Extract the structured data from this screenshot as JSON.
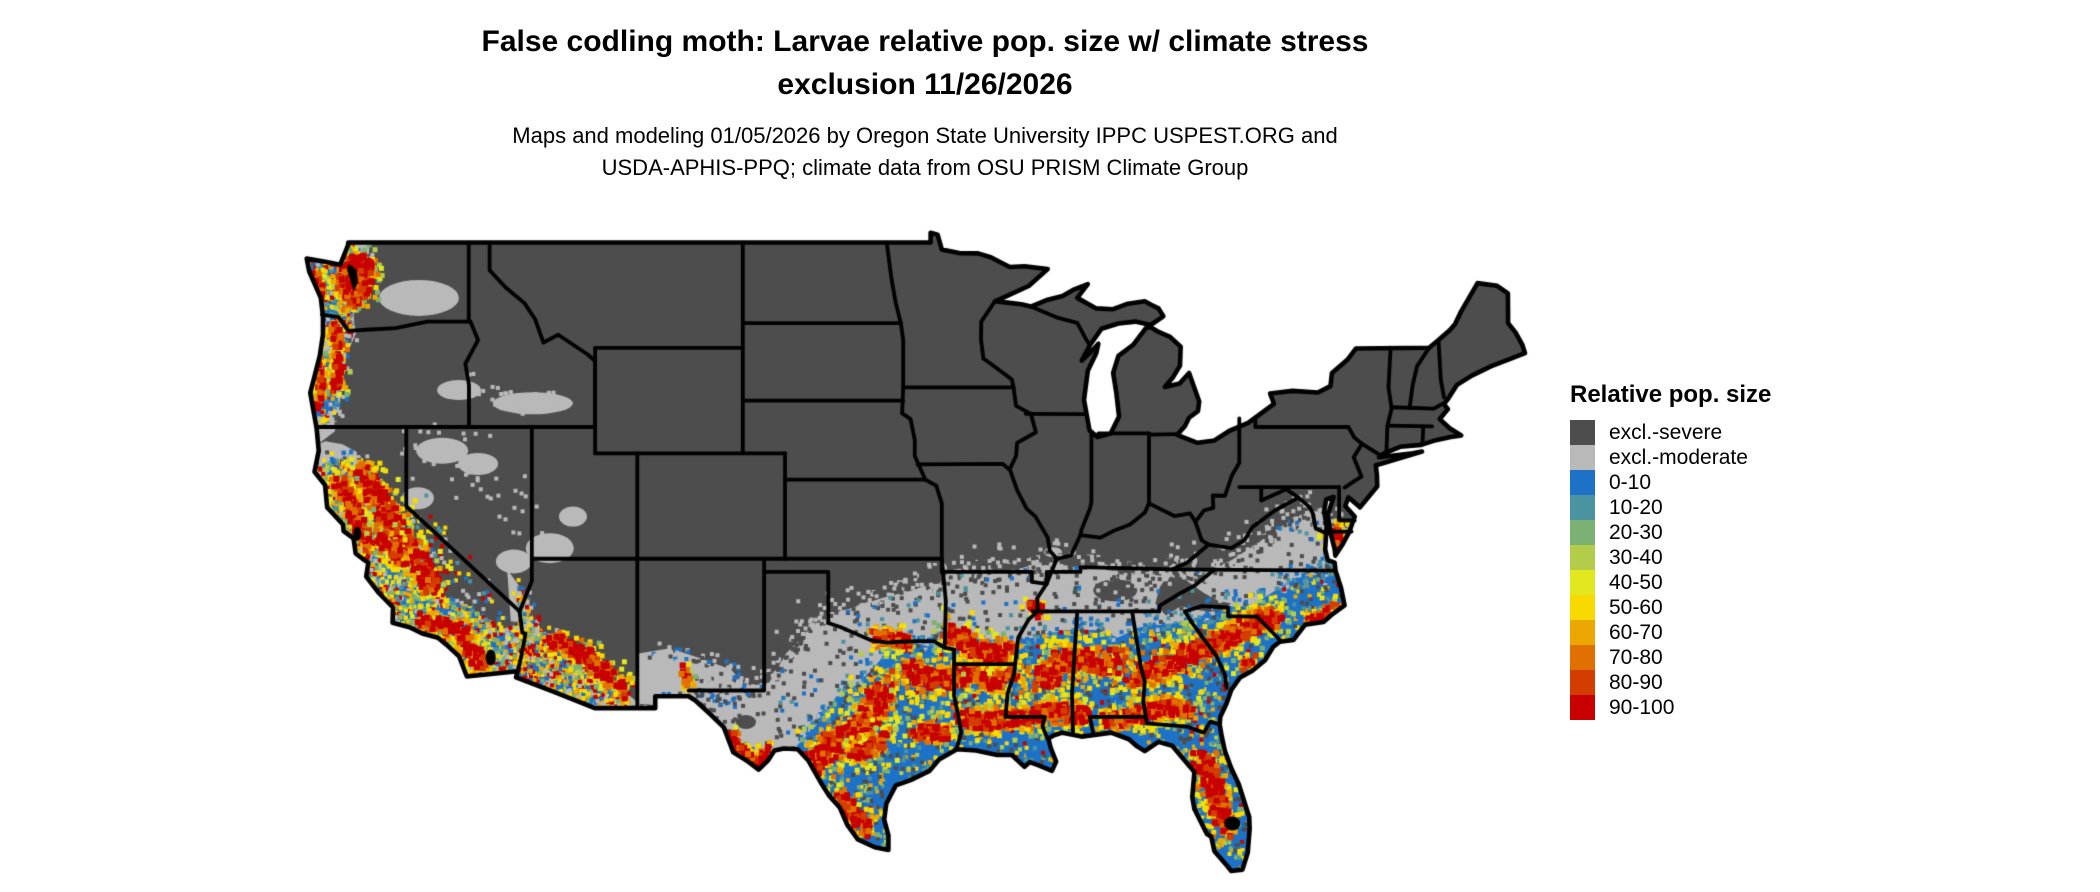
{
  "header": {
    "title": "False codling moth: Larvae relative pop. size w/ climate stress",
    "title_line2": "exclusion 11/26/2026",
    "subtitle": "Maps and modeling 01/05/2026 by Oregon State University IPPC USPEST.ORG and",
    "subtitle_line2": "USDA-APHIS-PPQ; climate data from OSU PRISM Climate Group"
  },
  "legend": {
    "title": "Relative pop. size",
    "items": [
      {
        "label": "excl.-severe",
        "color": "#4d4d4d"
      },
      {
        "label": "excl.-moderate",
        "color": "#b9b9b9"
      },
      {
        "label": "0-10",
        "color": "#1d72c8"
      },
      {
        "label": "10-20",
        "color": "#4b93a0"
      },
      {
        "label": "20-30",
        "color": "#7bb172"
      },
      {
        "label": "30-40",
        "color": "#b3cc49"
      },
      {
        "label": "40-50",
        "color": "#e2e81f"
      },
      {
        "label": "50-60",
        "color": "#f8da00"
      },
      {
        "label": "60-70",
        "color": "#eca800"
      },
      {
        "label": "70-80",
        "color": "#e07000"
      },
      {
        "label": "80-90",
        "color": "#d43d00"
      },
      {
        "label": "90-100",
        "color": "#c80000"
      }
    ]
  },
  "map": {
    "ocean_color": "#ffffff",
    "boundary_color": "#000000",
    "inland_water_color": "#000000",
    "description": "Continental US raster map: northern states shown as excluded-severe (dark gray), a transitional excluded-moderate band (light gray) across the mid-south and interior west, and relative population size values (blue through red) across the Gulf South, Florida, the southeastern coastal plain, Texas, the desert Southwest and the Pacific coast valleys."
  }
}
